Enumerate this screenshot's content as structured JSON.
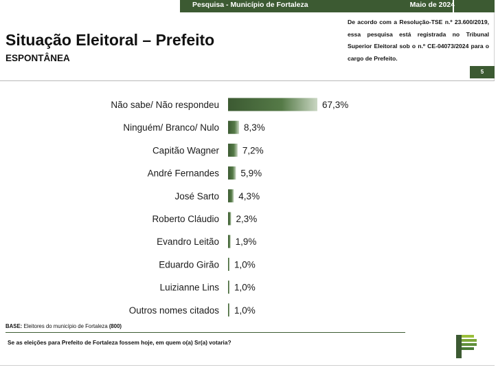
{
  "header": {
    "survey_label": "Pesquisa - Município de Fortaleza",
    "date_label": "Maio de 2024",
    "title": "Situação Eleitoral – Prefeito",
    "subtitle": "ESPONTÂNEA",
    "note": "De acordo com a Resolução-TSE n.º 23.600/2019, essa pesquisa está registrada no Tribunal Superior Eleitoral sob o n.º CE-04073/2024 para o cargo de Prefeito.",
    "page_number": "5"
  },
  "colors": {
    "bar_dark": "#3c5a32",
    "bar_light": "#c9d6c2",
    "brand_green": "#3c5a32"
  },
  "chart_data": {
    "type": "bar",
    "orientation": "horizontal",
    "title": "",
    "categories": [
      "Não sabe/ Não respondeu",
      "Ninguém/ Branco/ Nulo",
      "Capitão Wagner",
      "André Fernandes",
      "José Sarto",
      "Roberto Cláudio",
      "Evandro Leitão",
      "Eduardo Girão",
      "Luizianne Lins",
      "Outros nomes citados"
    ],
    "values": [
      67.3,
      8.3,
      7.2,
      5.9,
      4.3,
      2.3,
      1.9,
      1.0,
      1.0,
      1.0
    ],
    "value_labels": [
      "67,3%",
      "8,3%",
      "7,2%",
      "5,9%",
      "4,3%",
      "2,3%",
      "1,9%",
      "1,0%",
      "1,0%",
      "1,0%"
    ],
    "xlabel": "",
    "ylabel": "",
    "grid": false
  },
  "footer": {
    "base_label": "BASE:",
    "base_text": "Eleitores do município de Fortaleza",
    "base_n": "(800)",
    "question": "Se as eleições para Prefeito de Fortaleza fossem hoje, em quem o(a) Sr(a) votaria?"
  },
  "logo_icon": "brand-logo-icon"
}
